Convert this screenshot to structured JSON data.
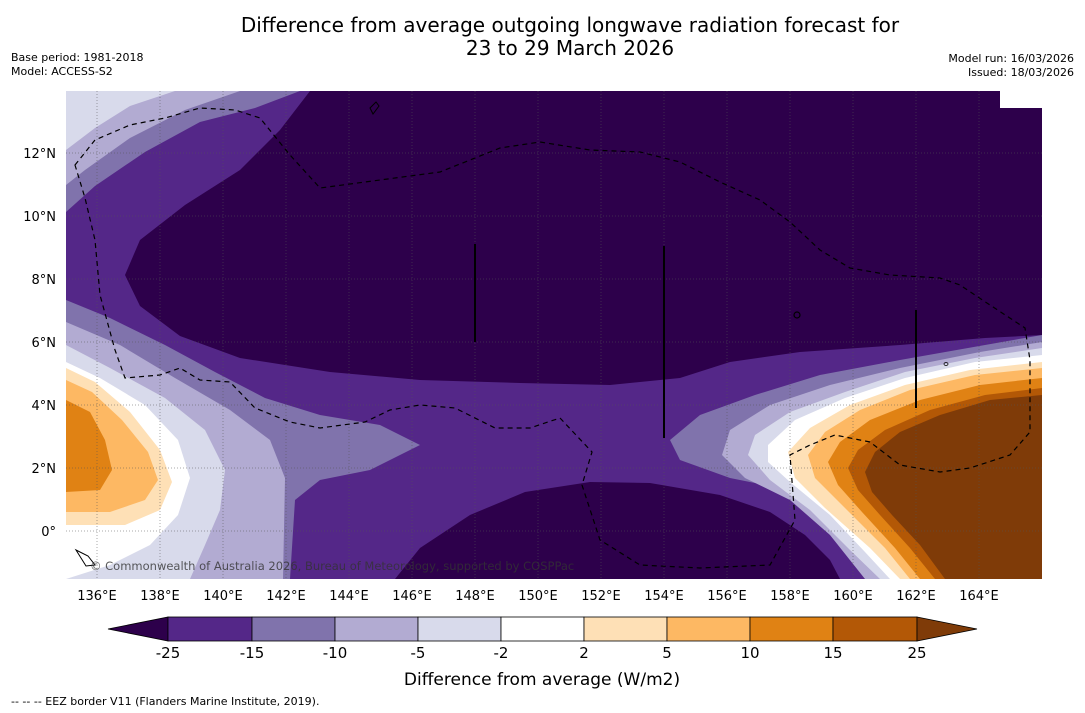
{
  "title": {
    "line1": "Difference from average outgoing longwave radiation forecast for",
    "line2": "23 to 29 March 2026"
  },
  "meta_left": {
    "base_period": "Base period: 1981-2018",
    "model": "Model: ACCESS-S2"
  },
  "meta_right": {
    "model_run": "Model run: 16/03/2026",
    "issued": "Issued: 18/03/2026"
  },
  "map": {
    "lon_labels": [
      "136°E",
      "138°E",
      "140°E",
      "142°E",
      "144°E",
      "146°E",
      "148°E",
      "150°E",
      "152°E",
      "154°E",
      "156°E",
      "158°E",
      "160°E",
      "162°E",
      "164°E"
    ],
    "lat_labels": [
      "12°N",
      "10°N",
      "8°N",
      "6°N",
      "4°N",
      "2°N",
      "0°"
    ],
    "copyright": "© Commonwealth of Australia 2026, Bureau of Meteorology, supported by COSPPac"
  },
  "colorbar": {
    "title": "Difference from average (W/m2)",
    "ticks": [
      "-25",
      "-15",
      "-10",
      "-5",
      "-2",
      "2",
      "5",
      "10",
      "15",
      "25"
    ],
    "colors": [
      "#2d004b",
      "#542788",
      "#8073ac",
      "#b2abd2",
      "#d8daeb",
      "#ffffff",
      "#fee0b6",
      "#fdb863",
      "#e08214",
      "#b35806",
      "#7f3b08"
    ]
  },
  "footnote": "--  --  -- EEZ border V11 (Flanders Marine Institute, 2019)."
}
